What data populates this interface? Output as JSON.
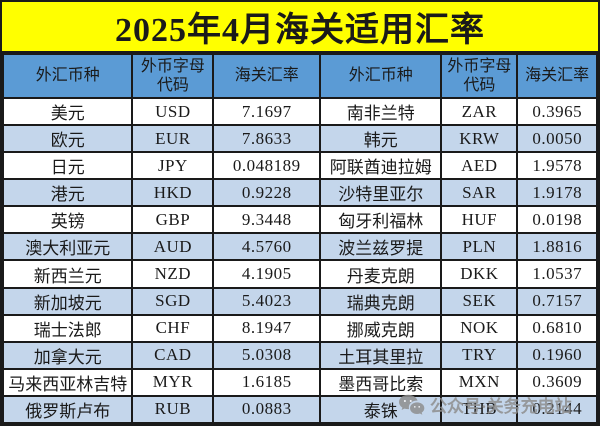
{
  "title": "2025年4月海关适用汇率",
  "table": {
    "headers": [
      "外汇币种",
      "外币字母代码",
      "海关汇率"
    ],
    "left_rows": [
      {
        "currency": "美元",
        "code": "USD",
        "rate": "7.1697"
      },
      {
        "currency": "欧元",
        "code": "EUR",
        "rate": "7.8633"
      },
      {
        "currency": "日元",
        "code": "JPY",
        "rate": "0.048189"
      },
      {
        "currency": "港元",
        "code": "HKD",
        "rate": "0.9228"
      },
      {
        "currency": "英镑",
        "code": "GBP",
        "rate": "9.3448"
      },
      {
        "currency": "澳大利亚元",
        "code": "AUD",
        "rate": "4.5760"
      },
      {
        "currency": "新西兰元",
        "code": "NZD",
        "rate": "4.1905"
      },
      {
        "currency": "新加坡元",
        "code": "SGD",
        "rate": "5.4023"
      },
      {
        "currency": "瑞士法郎",
        "code": "CHF",
        "rate": "8.1947"
      },
      {
        "currency": "加拿大元",
        "code": "CAD",
        "rate": "5.0308"
      },
      {
        "currency": "马来西亚林吉特",
        "code": "MYR",
        "rate": "1.6185"
      },
      {
        "currency": "俄罗斯卢布",
        "code": "RUB",
        "rate": "0.0883"
      }
    ],
    "right_rows": [
      {
        "currency": "南非兰特",
        "code": "ZAR",
        "rate": "0.3965"
      },
      {
        "currency": "韩元",
        "code": "KRW",
        "rate": "0.0050"
      },
      {
        "currency": "阿联酋迪拉姆",
        "code": "AED",
        "rate": "1.9578"
      },
      {
        "currency": "沙特里亚尔",
        "code": "SAR",
        "rate": "1.9178"
      },
      {
        "currency": "匈牙利福林",
        "code": "HUF",
        "rate": "0.0198"
      },
      {
        "currency": "波兰兹罗提",
        "code": "PLN",
        "rate": "1.8816"
      },
      {
        "currency": "丹麦克朗",
        "code": "DKK",
        "rate": "1.0537"
      },
      {
        "currency": "瑞典克朗",
        "code": "SEK",
        "rate": "0.7157"
      },
      {
        "currency": "挪威克朗",
        "code": "NOK",
        "rate": "0.6810"
      },
      {
        "currency": "土耳其里拉",
        "code": "TRY",
        "rate": "0.1960"
      },
      {
        "currency": "墨西哥比索",
        "code": "MXN",
        "rate": "0.3609"
      },
      {
        "currency": "泰铢",
        "code": "THB",
        "rate": "0.2144"
      }
    ]
  },
  "watermark": {
    "icon": "wechat-icon",
    "text": "公众号·关务充电站"
  },
  "colors": {
    "title_bg": "#FFFF00",
    "header_bg": "#5B9BD5",
    "row_alt_bg": "#C4D6EB",
    "border": "#1A1A1A",
    "text": "#1A1A1A",
    "watermark": "#8F8F8F"
  }
}
